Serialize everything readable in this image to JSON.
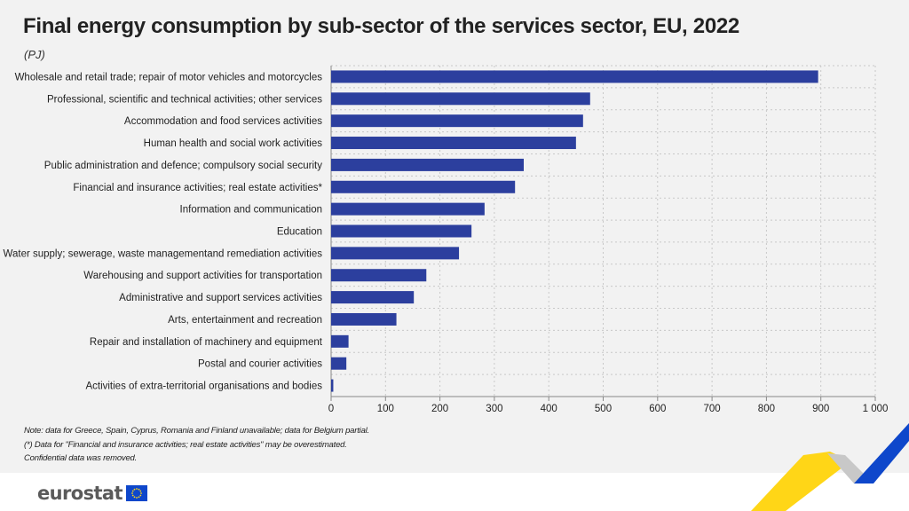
{
  "title": "Final energy consumption by sub-sector of the services sector, EU, 2022",
  "unit": "(PJ)",
  "notes": [
    "Note: data for Greece, Spain, Cyprus, Romania and Finland unavailable; data for Belgium partial.",
    "(*) Data for \"Financial and insurance activities; real estate activities\" may be overestimated.",
    "Confidential data was removed."
  ],
  "logo": {
    "text": "eurostat",
    "flag_icon": "eu-flag-icon"
  },
  "colors": {
    "bar": "#2c3f9e",
    "grid": "#c8c8c8",
    "background": "#f2f2f2",
    "accent_yellow": "#ffd617",
    "accent_blue": "#0e47cb"
  },
  "chart_data": {
    "type": "bar",
    "orientation": "horizontal",
    "categories": [
      "Wholesale and retail trade; repair of motor vehicles and motorcycles",
      "Professional, scientific and technical activities; other services",
      "Accommodation and food services activities",
      "Human health and social work activities",
      "Public administration and defence; compulsory social security",
      "Financial and insurance activities; real estate activities*",
      "Information and communication",
      "Education",
      "Water supply; sewerage, waste managementand remediation activities",
      "Warehousing and support activities for transportation",
      "Administrative and support services activities",
      "Arts, entertainment and recreation",
      "Repair and installation of machinery and equipment",
      "Postal and courier activities",
      "Activities of extra-territorial organisations and bodies"
    ],
    "values": [
      895,
      476,
      463,
      450,
      354,
      338,
      282,
      258,
      235,
      175,
      152,
      120,
      32,
      28,
      4
    ],
    "xlim": [
      0,
      1000
    ],
    "xticks": [
      0,
      100,
      200,
      300,
      400,
      500,
      600,
      700,
      800,
      900,
      1000
    ],
    "xtick_labels": [
      "0",
      "100",
      "200",
      "300",
      "400",
      "500",
      "600",
      "700",
      "800",
      "900",
      "1 000"
    ],
    "grid": true
  }
}
